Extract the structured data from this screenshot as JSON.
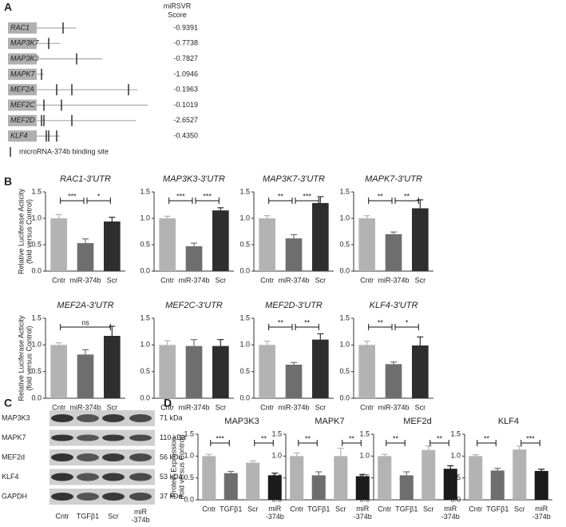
{
  "panel_labels": [
    "A",
    "B",
    "C",
    "D"
  ],
  "panel_a": {
    "score_header": [
      "miRSVR",
      "Score"
    ],
    "genes": [
      {
        "name": "RAC1",
        "score": "-0.9391"
      },
      {
        "name": "MAP3K7",
        "score": "-0.7738"
      },
      {
        "name": "MAP3K3",
        "score": "-0.7827"
      },
      {
        "name": "MAPK7",
        "score": "-1.0946"
      },
      {
        "name": "MEF2A",
        "score": "-0.1963"
      },
      {
        "name": "MEF2C",
        "score": "-0.1019"
      },
      {
        "name": "MEF2D",
        "score": "-2.6527"
      },
      {
        "name": "KLF4",
        "score": "-0.4350"
      }
    ],
    "legend": "microRNA-374b binding site"
  },
  "panel_c": {
    "rows": [
      {
        "protein": "MAP3K3",
        "size": "71 kDa"
      },
      {
        "protein": "MAPK7",
        "size": "110 kDa"
      },
      {
        "protein": "MEF2d",
        "size": "56 kDa"
      },
      {
        "protein": "KLF4",
        "size": "53 kDa"
      },
      {
        "protein": "GAPDH",
        "size": "37 kDa"
      }
    ],
    "lanes": [
      "Cntr",
      "TGFβ1",
      "Scr",
      "miR -374b"
    ]
  },
  "chart_data": [
    {
      "type": "bar",
      "title": "RAC1-3'UTR",
      "ylabel": [
        "Relative Luciferase Acticity",
        "(fold versus Control)"
      ],
      "categories": [
        "Cntr",
        "miR-374b",
        "Scr"
      ],
      "values": [
        1.0,
        0.53,
        0.94
      ],
      "errors": [
        0.07,
        0.08,
        0.08
      ],
      "colors": [
        "#b3b3b3",
        "#6e6e6e",
        "#2e2e2e"
      ],
      "ylim": [
        0,
        1.5
      ],
      "yticks": [
        {
          "value": 0,
          "label": "0.0"
        },
        0.5,
        {
          "value": 1,
          "label": "1.0"
        },
        1.5
      ],
      "significance": [
        {
          "label": "***",
          "between": [
            "Cntr",
            "miR-374b"
          ]
        },
        {
          "label": "*",
          "between": [
            "miR-374b",
            "Scr"
          ]
        }
      ]
    },
    {
      "type": "bar",
      "title": "MAP3K3-3'UTR",
      "categories": [
        "Cntr",
        "miR-374b",
        "Scr"
      ],
      "values": [
        1.0,
        0.47,
        1.15
      ],
      "errors": [
        0.04,
        0.06,
        0.05
      ],
      "colors": [
        "#b3b3b3",
        "#6e6e6e",
        "#2e2e2e"
      ],
      "ylim": [
        0,
        1.5
      ],
      "yticks": [
        {
          "value": 0,
          "label": "0.0"
        },
        0.5,
        {
          "value": 1,
          "label": "1.0"
        },
        1.5
      ],
      "significance": [
        {
          "label": "***",
          "between": [
            "Cntr",
            "miR-374b"
          ]
        },
        {
          "label": "***",
          "between": [
            "miR-374b",
            "Scr"
          ]
        }
      ]
    },
    {
      "type": "bar",
      "title": "MAP3K7-3'UTR",
      "categories": [
        "Cntr",
        "miR-374b",
        "Scr"
      ],
      "values": [
        1.0,
        0.62,
        1.29
      ],
      "errors": [
        0.05,
        0.07,
        0.12
      ],
      "colors": [
        "#b3b3b3",
        "#6e6e6e",
        "#2e2e2e"
      ],
      "ylim": [
        0,
        1.5
      ],
      "yticks": [
        {
          "value": 0,
          "label": "0.0"
        },
        0.5,
        {
          "value": 1,
          "label": "1.0"
        },
        1.5
      ],
      "significance": [
        {
          "label": "**",
          "between": [
            "Cntr",
            "miR-374b"
          ]
        },
        {
          "label": "***",
          "between": [
            "miR-374b",
            "Scr"
          ]
        }
      ]
    },
    {
      "type": "bar",
      "title": "MAPK7-3'UTR",
      "categories": [
        "Cntr",
        "miR-374b",
        "Scr"
      ],
      "values": [
        1.0,
        0.7,
        1.19
      ],
      "errors": [
        0.05,
        0.04,
        0.16
      ],
      "colors": [
        "#b3b3b3",
        "#6e6e6e",
        "#2e2e2e"
      ],
      "ylim": [
        0,
        1.5
      ],
      "yticks": [
        {
          "value": 0,
          "label": "0.0"
        },
        0.5,
        {
          "value": 1,
          "label": "1.0"
        },
        1.5
      ],
      "significance": [
        {
          "label": "**",
          "between": [
            "Cntr",
            "miR-374b"
          ]
        },
        {
          "label": "**",
          "between": [
            "miR-374b",
            "Scr"
          ]
        }
      ]
    },
    {
      "type": "bar",
      "title": "MEF2A-3'UTR",
      "ylabel": [
        "Relative Luciferase Acticity",
        "(fold versus Control)"
      ],
      "categories": [
        "Cntr",
        "miR-374b",
        "Scr"
      ],
      "values": [
        1.0,
        0.82,
        1.17
      ],
      "errors": [
        0.04,
        0.09,
        0.18
      ],
      "colors": [
        "#b3b3b3",
        "#6e6e6e",
        "#2e2e2e"
      ],
      "ylim": [
        0,
        1.5
      ],
      "yticks": [
        {
          "value": 0,
          "label": "0.0"
        },
        0.5,
        {
          "value": 1,
          "label": "1.0"
        },
        1.5
      ],
      "significance": [
        {
          "label": "ns",
          "between": [
            "Cntr",
            "Scr"
          ]
        }
      ]
    },
    {
      "type": "bar",
      "title": "MEF2C-3'UTR",
      "categories": [
        "Cntr",
        "miR-374b",
        "Scr"
      ],
      "values": [
        1.0,
        0.98,
        0.98
      ],
      "errors": [
        0.08,
        0.12,
        0.12
      ],
      "colors": [
        "#b3b3b3",
        "#6e6e6e",
        "#2e2e2e"
      ],
      "ylim": [
        0,
        1.5
      ],
      "yticks": [
        {
          "value": 0,
          "label": "0.0"
        },
        0.5,
        {
          "value": 1,
          "label": "1.0"
        },
        1.5
      ],
      "significance": []
    },
    {
      "type": "bar",
      "title": "MEF2D-3'UTR",
      "categories": [
        "Cntr",
        "miR-374b",
        "Scr"
      ],
      "values": [
        1.0,
        0.63,
        1.1
      ],
      "errors": [
        0.07,
        0.04,
        0.11
      ],
      "colors": [
        "#b3b3b3",
        "#6e6e6e",
        "#2e2e2e"
      ],
      "ylim": [
        0,
        1.5
      ],
      "yticks": [
        {
          "value": 0,
          "label": "0.0"
        },
        0.5,
        {
          "value": 1,
          "label": "1.0"
        },
        1.5
      ],
      "significance": [
        {
          "label": "**",
          "between": [
            "Cntr",
            "miR-374b"
          ]
        },
        {
          "label": "**",
          "between": [
            "miR-374b",
            "Scr"
          ]
        }
      ]
    },
    {
      "type": "bar",
      "title": "KLF4-3'UTR",
      "categories": [
        "Cntr",
        "miR-374b",
        "Scr"
      ],
      "values": [
        1.0,
        0.64,
        0.99
      ],
      "errors": [
        0.07,
        0.04,
        0.16
      ],
      "colors": [
        "#b3b3b3",
        "#6e6e6e",
        "#2e2e2e"
      ],
      "ylim": [
        0,
        1.5
      ],
      "yticks": [
        {
          "value": 0,
          "label": "0.0"
        },
        0.5,
        {
          "value": 1,
          "label": "1.0"
        },
        1.5
      ],
      "significance": [
        {
          "label": "**",
          "between": [
            "Cntr",
            "miR-374b"
          ]
        },
        {
          "label": "*",
          "between": [
            "miR-374b",
            "Scr"
          ]
        }
      ]
    },
    {
      "type": "bar",
      "title": "MAP3K3",
      "ylabel": [
        "Protein Expression",
        "(fold versus Control)"
      ],
      "categories": [
        "Cntr",
        "TGFβ1",
        "Scr",
        "miR -374b"
      ],
      "values": [
        1.0,
        0.61,
        0.85,
        0.56
      ],
      "errors": [
        0.04,
        0.04,
        0.04,
        0.05
      ],
      "colors": [
        "#b3b3b3",
        "#6e6e6e",
        "#b3b3b3",
        "#1a1a1a"
      ],
      "ylim": [
        0,
        1.5
      ],
      "yticks": [
        {
          "value": 0,
          "label": "0.0"
        },
        0.5,
        {
          "value": 1,
          "label": "1.0"
        },
        1.5
      ],
      "significance": [
        {
          "label": "***",
          "between": [
            "Cntr",
            "TGFβ1"
          ]
        },
        {
          "label": "**",
          "between": [
            "Scr",
            "miR -374b"
          ]
        }
      ]
    },
    {
      "type": "bar",
      "title": "MAPK7",
      "categories": [
        "Cntr",
        "TGFβ1",
        "Scr",
        "miR -374b"
      ],
      "values": [
        1.0,
        0.56,
        1.0,
        0.54
      ],
      "errors": [
        0.07,
        0.08,
        0.18,
        0.04
      ],
      "colors": [
        "#b3b3b3",
        "#6e6e6e",
        "#b3b3b3",
        "#1a1a1a"
      ],
      "ylim": [
        0,
        1.5
      ],
      "yticks": [
        {
          "value": 0,
          "label": "0.0"
        },
        0.5,
        {
          "value": 1,
          "label": "1.0"
        },
        1.5
      ],
      "significance": [
        {
          "label": "**",
          "between": [
            "Cntr",
            "TGFβ1"
          ]
        },
        {
          "label": "**",
          "between": [
            "Scr",
            "miR -374b"
          ]
        }
      ]
    },
    {
      "type": "bar",
      "title": "MEF2d",
      "categories": [
        "Cntr",
        "TGFβ1",
        "Scr",
        "miR -374b"
      ],
      "values": [
        1.0,
        0.56,
        1.14,
        0.71
      ],
      "errors": [
        0.04,
        0.08,
        0.09,
        0.07
      ],
      "colors": [
        "#b3b3b3",
        "#6e6e6e",
        "#b3b3b3",
        "#1a1a1a"
      ],
      "ylim": [
        0,
        1.5
      ],
      "yticks": [
        {
          "value": 0,
          "label": "0.0"
        },
        0.5,
        {
          "value": 1,
          "label": "1.0"
        },
        1.5
      ],
      "significance": [
        {
          "label": "**",
          "between": [
            "Cntr",
            "TGFβ1"
          ]
        },
        {
          "label": "**",
          "between": [
            "Scr",
            "miR -374b"
          ]
        }
      ]
    },
    {
      "type": "bar",
      "title": "KLF4",
      "categories": [
        "Cntr",
        "TGFβ1",
        "Scr",
        "miR -374b"
      ],
      "values": [
        1.0,
        0.67,
        1.15,
        0.66
      ],
      "errors": [
        0.03,
        0.05,
        0.08,
        0.04
      ],
      "colors": [
        "#b3b3b3",
        "#6e6e6e",
        "#b3b3b3",
        "#1a1a1a"
      ],
      "ylim": [
        0,
        1.5
      ],
      "yticks": [
        {
          "value": 0,
          "label": "0.0"
        },
        0.5,
        {
          "value": 1,
          "label": "1.0"
        },
        1.5
      ],
      "significance": [
        {
          "label": "**",
          "between": [
            "Cntr",
            "TGFβ1"
          ]
        },
        {
          "label": "***",
          "between": [
            "Scr",
            "miR -374b"
          ]
        }
      ]
    }
  ]
}
